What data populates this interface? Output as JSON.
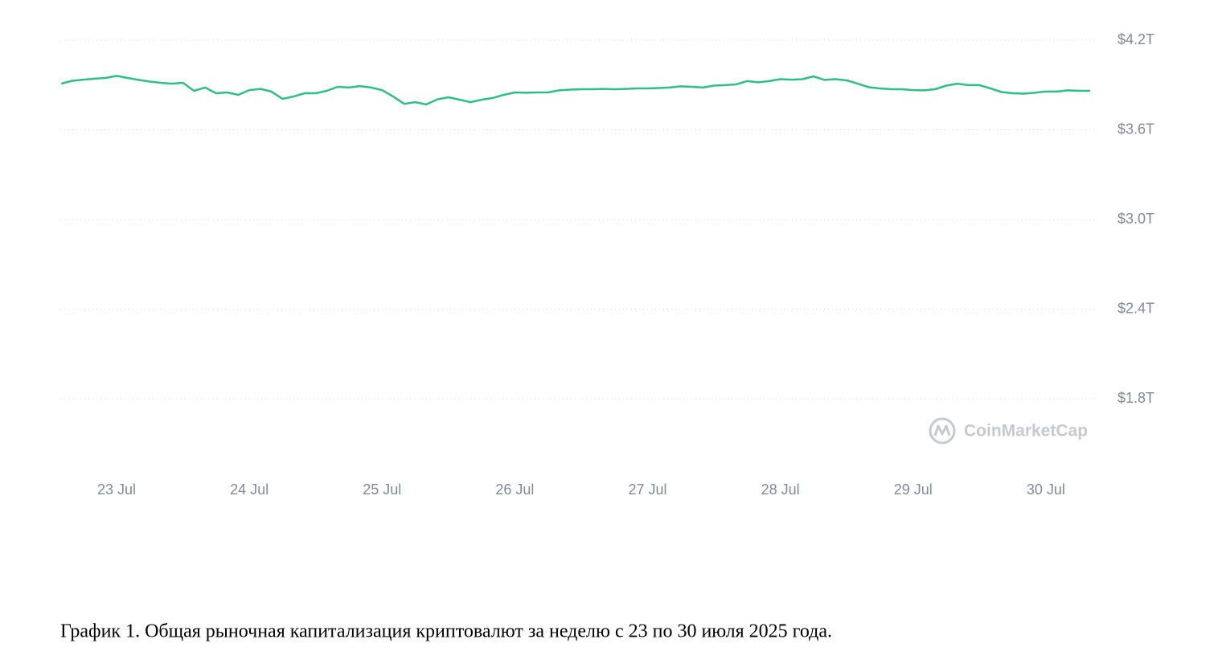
{
  "chart_data": {
    "type": "line",
    "categories": [
      null,
      null,
      null,
      null,
      null,
      "23 Jul",
      null,
      null,
      null,
      null,
      null,
      null,
      null,
      null,
      null,
      null,
      null,
      "24 Jul",
      null,
      null,
      null,
      null,
      null,
      null,
      null,
      null,
      null,
      null,
      null,
      "25 Jul",
      null,
      null,
      null,
      null,
      null,
      null,
      null,
      null,
      null,
      null,
      null,
      "26 Jul",
      null,
      null,
      null,
      null,
      null,
      null,
      null,
      null,
      null,
      null,
      null,
      "27 Jul",
      null,
      null,
      null,
      null,
      null,
      null,
      null,
      null,
      null,
      null,
      null,
      "28 Jul",
      null,
      null,
      null,
      null,
      null,
      null,
      null,
      null,
      null,
      null,
      null,
      "29 Jul",
      null,
      null,
      null,
      null,
      null,
      null,
      null,
      null,
      null,
      null,
      null,
      "30 Jul",
      null,
      null,
      null,
      null
    ],
    "series": [
      {
        "color": "#2fbf85",
        "values": [
          3.909,
          3.928,
          3.936,
          3.942,
          3.947,
          3.961,
          3.947,
          3.934,
          3.923,
          3.915,
          3.909,
          3.915,
          3.861,
          3.883,
          3.845,
          3.85,
          3.834,
          3.866,
          3.874,
          3.856,
          3.807,
          3.823,
          3.845,
          3.845,
          3.861,
          3.888,
          3.883,
          3.893,
          3.883,
          3.866,
          3.823,
          3.774,
          3.785,
          3.77,
          3.804,
          3.818,
          3.802,
          3.785,
          3.802,
          3.813,
          3.834,
          3.85,
          3.848,
          3.85,
          3.85,
          3.864,
          3.869,
          3.872,
          3.872,
          3.874,
          3.872,
          3.874,
          3.877,
          3.877,
          3.88,
          3.883,
          3.891,
          3.888,
          3.883,
          3.896,
          3.899,
          3.904,
          3.926,
          3.918,
          3.926,
          3.939,
          3.936,
          3.939,
          3.958,
          3.934,
          3.939,
          3.931,
          3.909,
          3.885,
          3.877,
          3.872,
          3.872,
          3.866,
          3.864,
          3.872,
          3.896,
          3.909,
          3.899,
          3.899,
          3.877,
          3.853,
          3.845,
          3.842,
          3.848,
          3.856,
          3.856,
          3.864,
          3.861,
          3.861
        ]
      }
    ],
    "ylim": [
      1.8,
      4.2
    ],
    "yticks": [
      {
        "value": 1.8,
        "label": "$1.8T"
      },
      {
        "value": 2.4,
        "label": "$2.4T"
      },
      {
        "value": 3.0,
        "label": "$3.0T"
      },
      {
        "value": 3.6,
        "label": "$3.6T"
      },
      {
        "value": 4.2,
        "label": "$4.2T"
      }
    ],
    "grid": true,
    "watermark": "CoinMarketCap",
    "caption": "График 1. Общая рыночная капитализация криптовалют за неделю с 23 по 30 июля 2025 года."
  }
}
